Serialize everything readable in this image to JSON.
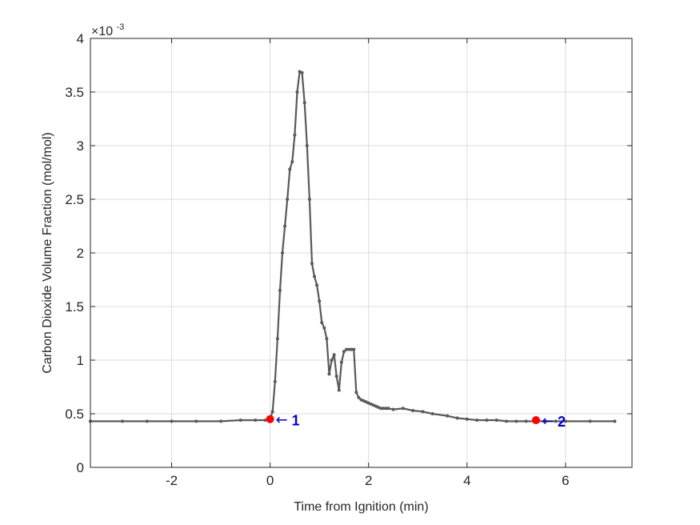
{
  "chart_data": {
    "type": "line",
    "title": "",
    "xlabel": "Time from Ignition (min)",
    "ylabel": "Carbon Dioxide Volume Fraction (mol/mol)",
    "y_exponent_label": "×10",
    "y_exponent_power": "-3",
    "xlim": [
      -3.65,
      7.35
    ],
    "ylim": [
      0,
      4
    ],
    "x_ticks": [
      -2,
      0,
      2,
      4,
      6
    ],
    "x_tick_labels": [
      "-2",
      "0",
      "2",
      "4",
      "6"
    ],
    "y_ticks": [
      0,
      0.5,
      1,
      1.5,
      2,
      2.5,
      3,
      3.5,
      4
    ],
    "y_tick_labels": [
      "0",
      "0.5",
      "1",
      "1.5",
      "2",
      "2.5",
      "3",
      "3.5",
      "4"
    ],
    "grid": true,
    "line_color": "#595959",
    "marker_color": "#ff0000",
    "annotation_color": "#0000cc",
    "series": [
      {
        "x": [
          -3.65,
          -3.0,
          -2.5,
          -2.0,
          -1.5,
          -1.0,
          -0.6,
          -0.3,
          -0.1,
          0.0,
          0.05,
          0.1,
          0.15,
          0.2,
          0.25,
          0.3,
          0.35,
          0.4,
          0.45,
          0.5,
          0.55,
          0.6,
          0.65,
          0.7,
          0.75,
          0.8,
          0.85,
          0.9,
          0.95,
          1.0,
          1.05,
          1.1,
          1.15,
          1.2,
          1.25,
          1.3,
          1.35,
          1.4,
          1.45,
          1.5,
          1.55,
          1.6,
          1.65,
          1.7,
          1.75,
          1.8,
          1.85,
          1.9,
          1.95,
          2.0,
          2.05,
          2.1,
          2.15,
          2.2,
          2.25,
          2.3,
          2.35,
          2.4,
          2.5,
          2.7,
          2.9,
          3.1,
          3.3,
          3.6,
          3.8,
          4.0,
          4.2,
          4.4,
          4.6,
          4.8,
          5.0,
          5.2,
          5.4,
          5.6,
          5.8,
          6.0,
          6.5,
          7.0
        ],
        "y": [
          0.43,
          0.43,
          0.43,
          0.43,
          0.43,
          0.43,
          0.44,
          0.44,
          0.44,
          0.45,
          0.52,
          0.8,
          1.2,
          1.65,
          2.0,
          2.25,
          2.5,
          2.78,
          2.85,
          3.1,
          3.5,
          3.69,
          3.68,
          3.4,
          3.0,
          2.5,
          1.9,
          1.78,
          1.7,
          1.55,
          1.35,
          1.3,
          1.2,
          0.87,
          1.0,
          1.05,
          0.85,
          0.72,
          0.98,
          1.08,
          1.1,
          1.1,
          1.1,
          1.1,
          0.7,
          0.65,
          0.63,
          0.62,
          0.61,
          0.6,
          0.59,
          0.58,
          0.57,
          0.56,
          0.55,
          0.55,
          0.55,
          0.55,
          0.54,
          0.55,
          0.53,
          0.52,
          0.5,
          0.48,
          0.46,
          0.45,
          0.44,
          0.44,
          0.44,
          0.43,
          0.43,
          0.43,
          0.43,
          0.43,
          0.43,
          0.43,
          0.43,
          0.43
        ]
      }
    ],
    "markers": [
      {
        "x": 0.0,
        "y": 0.45,
        "label": "1",
        "arrow": "←"
      },
      {
        "x": 5.4,
        "y": 0.44,
        "label": "2",
        "arrow": "←"
      }
    ]
  }
}
